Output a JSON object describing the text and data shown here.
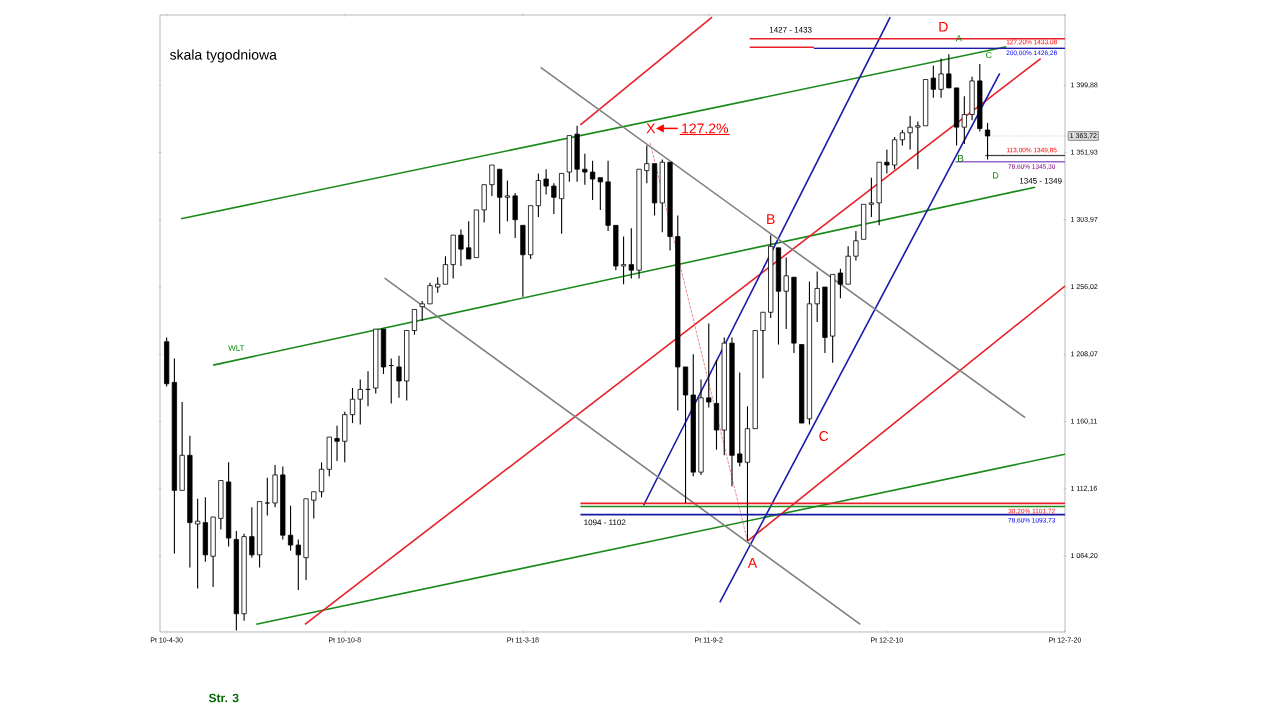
{
  "chart_data": {
    "type": "candlestick",
    "title": "skala tygodniowa",
    "x": [
      "2010-04-30",
      "2010-05-07",
      "2010-05-14",
      "2010-05-21",
      "2010-05-28",
      "2010-06-04",
      "2010-06-11",
      "2010-06-18",
      "2010-06-25",
      "2010-07-02",
      "2010-07-09",
      "2010-07-16",
      "2010-07-23",
      "2010-07-30",
      "2010-08-06",
      "2010-08-13",
      "2010-08-20",
      "2010-08-27",
      "2010-09-03",
      "2010-09-10",
      "2010-09-17",
      "2010-09-24",
      "2010-10-01",
      "2010-10-08",
      "2010-10-15",
      "2010-10-22",
      "2010-10-29",
      "2010-11-05",
      "2010-11-12",
      "2010-11-19",
      "2010-11-26",
      "2010-12-03",
      "2010-12-10",
      "2010-12-17",
      "2010-12-24",
      "2010-12-31",
      "2011-01-07",
      "2011-01-14",
      "2011-01-21",
      "2011-01-28",
      "2011-02-04",
      "2011-02-11",
      "2011-02-18",
      "2011-02-25",
      "2011-03-04",
      "2011-03-11",
      "2011-03-18",
      "2011-03-25",
      "2011-04-01",
      "2011-04-08",
      "2011-04-15",
      "2011-04-22",
      "2011-04-29",
      "2011-05-06",
      "2011-05-13",
      "2011-05-20",
      "2011-05-27",
      "2011-06-03",
      "2011-06-10",
      "2011-06-17",
      "2011-06-24",
      "2011-07-01",
      "2011-07-08",
      "2011-07-15",
      "2011-07-22",
      "2011-07-29",
      "2011-08-05",
      "2011-08-12",
      "2011-08-19",
      "2011-08-26",
      "2011-09-02",
      "2011-09-09",
      "2011-09-16",
      "2011-09-23",
      "2011-09-30",
      "2011-10-07",
      "2011-10-14",
      "2011-10-21",
      "2011-10-28",
      "2011-11-04",
      "2011-11-11",
      "2011-11-18",
      "2011-11-25",
      "2011-12-02",
      "2011-12-09",
      "2011-12-16",
      "2011-12-23",
      "2011-12-30",
      "2012-01-06",
      "2012-01-13",
      "2012-01-20",
      "2012-01-27",
      "2012-02-03",
      "2012-02-10",
      "2012-02-17",
      "2012-02-24",
      "2012-03-02",
      "2012-03-09",
      "2012-03-16",
      "2012-03-23",
      "2012-03-30",
      "2012-04-06",
      "2012-04-13",
      "2012-04-20",
      "2012-04-27",
      "2012-05-04",
      "2012-05-11"
    ],
    "ohlc": [
      [
        1217,
        1220,
        1185,
        1187
      ],
      [
        1188,
        1205,
        1066,
        1111
      ],
      [
        1111,
        1174,
        1110,
        1136
      ],
      [
        1136,
        1150,
        1056,
        1088
      ],
      [
        1087,
        1105,
        1041,
        1089
      ],
      [
        1088,
        1106,
        1060,
        1065
      ],
      [
        1064,
        1092,
        1042,
        1092
      ],
      [
        1091,
        1119,
        1083,
        1118
      ],
      [
        1117,
        1131,
        1071,
        1077
      ],
      [
        1076,
        1082,
        1011,
        1023
      ],
      [
        1023,
        1080,
        1018,
        1078
      ],
      [
        1078,
        1099,
        1063,
        1065
      ],
      [
        1065,
        1103,
        1056,
        1103
      ],
      [
        1102,
        1120,
        1093,
        1102
      ],
      [
        1102,
        1129,
        1099,
        1122
      ],
      [
        1122,
        1128,
        1076,
        1079
      ],
      [
        1079,
        1100,
        1068,
        1072
      ],
      [
        1072,
        1076,
        1040,
        1065
      ],
      [
        1063,
        1105,
        1047,
        1105
      ],
      [
        1104,
        1111,
        1091,
        1110
      ],
      [
        1110,
        1131,
        1106,
        1126
      ],
      [
        1126,
        1149,
        1121,
        1149
      ],
      [
        1148,
        1157,
        1132,
        1146
      ],
      [
        1146,
        1167,
        1131,
        1165
      ],
      [
        1165,
        1184,
        1159,
        1176
      ],
      [
        1176,
        1190,
        1158,
        1183
      ],
      [
        1183,
        1196,
        1171,
        1183
      ],
      [
        1184,
        1227,
        1180,
        1226
      ],
      [
        1226,
        1227,
        1194,
        1199
      ],
      [
        1200,
        1205,
        1173,
        1200
      ],
      [
        1199,
        1207,
        1177,
        1189
      ],
      [
        1189,
        1225,
        1175,
        1225
      ],
      [
        1225,
        1240,
        1222,
        1240
      ],
      [
        1242,
        1246,
        1232,
        1244
      ],
      [
        1244,
        1259,
        1243,
        1257
      ],
      [
        1256,
        1263,
        1252,
        1258
      ],
      [
        1258,
        1278,
        1257,
        1272
      ],
      [
        1272,
        1293,
        1262,
        1293
      ],
      [
        1293,
        1297,
        1271,
        1283
      ],
      [
        1284,
        1303,
        1275,
        1276
      ],
      [
        1277,
        1311,
        1276,
        1311
      ],
      [
        1311,
        1330,
        1302,
        1329
      ],
      [
        1329,
        1344,
        1321,
        1343
      ],
      [
        1340,
        1341,
        1294,
        1320
      ],
      [
        1320,
        1332,
        1303,
        1321
      ],
      [
        1321,
        1323,
        1291,
        1304
      ],
      [
        1300,
        1301,
        1249,
        1279
      ],
      [
        1279,
        1314,
        1276,
        1314
      ],
      [
        1314,
        1337,
        1306,
        1332
      ],
      [
        1333,
        1340,
        1322,
        1328
      ],
      [
        1328,
        1330,
        1308,
        1320
      ],
      [
        1319,
        1338,
        1294,
        1337
      ],
      [
        1338,
        1365,
        1331,
        1364
      ],
      [
        1365,
        1371,
        1331,
        1340
      ],
      [
        1340,
        1351,
        1329,
        1338
      ],
      [
        1338,
        1346,
        1318,
        1333
      ],
      [
        1334,
        1334,
        1311,
        1331
      ],
      [
        1331,
        1346,
        1296,
        1300
      ],
      [
        1300,
        1300,
        1268,
        1271
      ],
      [
        1271,
        1292,
        1258,
        1272
      ],
      [
        1272,
        1298,
        1262,
        1268
      ],
      [
        1268,
        1341,
        1262,
        1340
      ],
      [
        1339,
        1357,
        1330,
        1344
      ],
      [
        1344,
        1344,
        1307,
        1316
      ],
      [
        1316,
        1347,
        1295,
        1345
      ],
      [
        1345,
        1346,
        1282,
        1292
      ],
      [
        1292,
        1307,
        1168,
        1199
      ],
      [
        1199,
        1199,
        1102,
        1179
      ],
      [
        1179,
        1208,
        1121,
        1124
      ],
      [
        1124,
        1190,
        1122,
        1177
      ],
      [
        1177,
        1230,
        1170,
        1174
      ],
      [
        1173,
        1204,
        1140,
        1154
      ],
      [
        1154,
        1220,
        1136,
        1216
      ],
      [
        1216,
        1220,
        1114,
        1136
      ],
      [
        1137,
        1195,
        1128,
        1131
      ],
      [
        1131,
        1171,
        1075,
        1155
      ],
      [
        1155,
        1225,
        1154,
        1225
      ],
      [
        1225,
        1239,
        1191,
        1238
      ],
      [
        1238,
        1293,
        1234,
        1285
      ],
      [
        1284,
        1284,
        1215,
        1253
      ],
      [
        1253,
        1277,
        1226,
        1264
      ],
      [
        1263,
        1264,
        1209,
        1216
      ],
      [
        1215,
        1216,
        1159,
        1159
      ],
      [
        1162,
        1260,
        1158,
        1244
      ],
      [
        1244,
        1267,
        1231,
        1255
      ],
      [
        1256,
        1256,
        1209,
        1220
      ],
      [
        1221,
        1265,
        1202,
        1265
      ],
      [
        1266,
        1269,
        1248,
        1258
      ],
      [
        1258,
        1285,
        1258,
        1278
      ],
      [
        1278,
        1296,
        1275,
        1289
      ],
      [
        1290,
        1316,
        1290,
        1315
      ],
      [
        1315,
        1334,
        1306,
        1316
      ],
      [
        1316,
        1345,
        1300,
        1345
      ],
      [
        1345,
        1354,
        1337,
        1343
      ],
      [
        1343,
        1363,
        1340,
        1361
      ],
      [
        1361,
        1368,
        1357,
        1366
      ],
      [
        1366,
        1378,
        1354,
        1370
      ],
      [
        1370,
        1374,
        1340,
        1371
      ],
      [
        1371,
        1405,
        1370,
        1404
      ],
      [
        1405,
        1414,
        1391,
        1397
      ],
      [
        1397,
        1419,
        1391,
        1408
      ],
      [
        1408,
        1422,
        1398,
        1398
      ],
      [
        1398,
        1398,
        1357,
        1370
      ],
      [
        1370,
        1392,
        1358,
        1379
      ],
      [
        1379,
        1406,
        1375,
        1403
      ],
      [
        1403,
        1415,
        1367,
        1369
      ],
      [
        1368,
        1373,
        1347,
        1363.72
      ]
    ],
    "series": [
      {
        "type": "line",
        "color": "#1a8a1a",
        "x": [
          "2010-05-13",
          "2012-05-28"
        ],
        "values": [
          1304.7,
          1427.3
        ]
      },
      {
        "type": "line",
        "color": "#1a8a1a",
        "x": [
          "2010-06-11",
          "2012-06-23"
        ],
        "values": [
          1200.3,
          1327.2
        ]
      },
      {
        "type": "line",
        "color": "#1a8a1a",
        "x": [
          "2010-07-20",
          "2012-07-20"
        ],
        "values": [
          1015.5,
          1136.8
        ]
      },
      {
        "type": "line",
        "color": "#e8202a",
        "x": [
          "2011-05-09",
          "2011-09-05"
        ],
        "values": [
          1371.7,
          1448.5
        ]
      },
      {
        "type": "line",
        "color": "#e8202a",
        "x": [
          "2010-09-02",
          "2012-06-28"
        ],
        "values": [
          1015.5,
          1418.9
        ]
      },
      {
        "type": "line",
        "color": "#e8202a",
        "x": [
          "2011-10-07",
          "2012-07-20"
        ],
        "values": [
          1074.8,
          1256.7
        ]
      },
      {
        "type": "line",
        "color": "#1a1aa8",
        "x": [
          "2011-07-05",
          "2012-02-13"
        ],
        "values": [
          1100.2,
          1448.5
        ]
      },
      {
        "type": "line",
        "color": "#1a1aa8",
        "x": [
          "2011-09-12",
          "2012-05-22"
        ],
        "values": [
          1031.1,
          1408.3
        ]
      },
      {
        "type": "line",
        "color": "#808080",
        "x": [
          "2011-04-03",
          "2012-06-14"
        ],
        "values": [
          1412.6,
          1162.9
        ]
      },
      {
        "type": "line",
        "color": "#808080",
        "x": [
          "2010-11-13",
          "2012-01-17"
        ],
        "values": [
          1262.4,
          1015.5
        ]
      },
      {
        "type": "line",
        "color": "#e87070",
        "line_style": "dashed",
        "x": [
          "2011-07-11",
          "2011-10-07"
        ],
        "values": [
          1359,
          1074.8
        ]
      },
      {
        "type": "line",
        "color": "#e8202a",
        "x": [
          "2011-10-09",
          "2012-07-20"
        ],
        "values": [
          1433.08,
          1433.08
        ]
      },
      {
        "type": "line",
        "color": "#e8202a",
        "x": [
          "2011-10-09",
          "2011-12-06"
        ],
        "values": [
          1427,
          1427
        ]
      },
      {
        "type": "line",
        "color": "#1a1aa8",
        "x": [
          "2011-12-06",
          "2012-07-20"
        ],
        "values": [
          1426.28,
          1426.28
        ]
      },
      {
        "type": "line",
        "color": "#404040",
        "x": [
          "2012-05-09",
          "2012-07-20"
        ],
        "values": [
          1349.85,
          1349.85
        ]
      },
      {
        "type": "line",
        "color": "#9966cc",
        "x": [
          "2012-04-12",
          "2012-07-20"
        ],
        "values": [
          1345.3,
          1345.3
        ]
      },
      {
        "type": "line",
        "color": "#e8202a",
        "x": [
          "2011-05-09",
          "2012-07-20"
        ],
        "values": [
          1101.72,
          1101.72
        ]
      },
      {
        "type": "line",
        "color": "#1a8a1a",
        "x": [
          "2011-05-09",
          "2012-07-20"
        ],
        "values": [
          1099.5,
          1099.5
        ]
      },
      {
        "type": "line",
        "color": "#1a1aa8",
        "x": [
          "2011-05-09",
          "2012-07-20"
        ],
        "values": [
          1093.73,
          1093.73
        ]
      }
    ],
    "xlim": [
      "2010-04-24",
      "2012-07-20"
    ],
    "xticks": [
      {
        "value": "2010-04-30",
        "label": "Pt 10-4-30"
      },
      {
        "value": "2010-10-08",
        "label": "Pt 10-10-8"
      },
      {
        "value": "2011-03-18",
        "label": "Pt 11-3-18"
      },
      {
        "value": "2011-09-02",
        "label": "Pt 11-9-2"
      },
      {
        "value": "2012-02-10",
        "label": "Pt 12-2-10"
      },
      {
        "value": "2012-07-20",
        "label": "Pt 12-7-20"
      }
    ],
    "ylim": [
      1010,
      1450
    ],
    "yticks": [
      {
        "value": 1064.2,
        "label": "1 064,20"
      },
      {
        "value": 1112.16,
        "label": "1 112,16"
      },
      {
        "value": 1160.11,
        "label": "1 160,11"
      },
      {
        "value": 1208.07,
        "label": "1 208,07"
      },
      {
        "value": 1256.02,
        "label": "1 256,02"
      },
      {
        "value": 1303.97,
        "label": "1 303,97"
      },
      {
        "value": 1351.93,
        "label": "1 351,93"
      },
      {
        "value": 1399.88,
        "label": "1 399,88"
      }
    ],
    "annotations": [
      {
        "text": "X",
        "x": "2011-07-08",
        "y": 1357
      },
      {
        "text": "127.2%",
        "x": "2011-07-08",
        "y": 1357
      },
      {
        "text": "B",
        "x": "2011-10-28",
        "y": 1293
      },
      {
        "text": "C",
        "x": "2011-11-25",
        "y": 1159
      },
      {
        "text": "A",
        "x": "2011-10-07",
        "y": 1075
      },
      {
        "text": "D",
        "x": "2012-04-01",
        "y": 1433.08
      },
      {
        "text": "A",
        "x": "2012-04-06",
        "y": 1422
      },
      {
        "text": "B",
        "x": "2012-04-13",
        "y": 1357
      },
      {
        "text": "C",
        "x": "2012-05-04",
        "y": 1415
      },
      {
        "text": "D",
        "x": "2012-05-11",
        "y": 1347
      },
      {
        "text": "1427 - 1433",
        "x": "2011-11-15",
        "y": 1433.08
      },
      {
        "text": "1094 - 1102",
        "x": "2011-05-31",
        "y": 1101.72
      },
      {
        "text": "1345 - 1349",
        "x": "2012-06-28",
        "y": 1345.3
      },
      {
        "text": "WLT",
        "x": "2010-07-02",
        "y": 1204
      },
      {
        "text": "127,20% 1433,08",
        "x": "2012-06-28",
        "y": 1433.08
      },
      {
        "text": "200,00% 1426,28",
        "x": "2012-06-28",
        "y": 1426.28
      },
      {
        "text": "113,00% 1349,85",
        "x": "2012-06-28",
        "y": 1349.85
      },
      {
        "text": "78,60% 1345,30",
        "x": "2012-06-28",
        "y": 1345.3
      },
      {
        "text": "38,20% 1101,72",
        "x": "2012-06-28",
        "y": 1101.72
      },
      {
        "text": "78,60% 1093,73",
        "x": "2012-06-28",
        "y": 1093.73
      },
      {
        "text": "1 363,72",
        "x": "2012-05-11",
        "y": 1363.72
      },
      "Str. 3"
    ]
  }
}
